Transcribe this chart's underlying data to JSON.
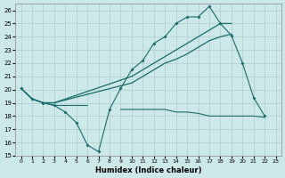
{
  "xlabel": "Humidex (Indice chaleur)",
  "background_color": "#cce8e8",
  "grid_color": "#b0cccc",
  "line_color": "#1a6b6b",
  "xlim": [
    -0.5,
    23.5
  ],
  "ylim": [
    15,
    26.5
  ],
  "yticks": [
    15,
    16,
    17,
    18,
    19,
    20,
    21,
    22,
    23,
    24,
    25,
    26
  ],
  "xticks": [
    0,
    1,
    2,
    3,
    4,
    5,
    6,
    7,
    8,
    9,
    10,
    11,
    12,
    13,
    14,
    15,
    16,
    17,
    18,
    19,
    20,
    21,
    22,
    23
  ],
  "series1_x": [
    0,
    1,
    2,
    3,
    4,
    5,
    6,
    7,
    8,
    9,
    10,
    11,
    12,
    13,
    14,
    15,
    16,
    17,
    18,
    19,
    20,
    21,
    22
  ],
  "series1_y": [
    20.1,
    19.3,
    19.0,
    18.8,
    18.3,
    17.5,
    15.8,
    15.3,
    18.5,
    20.1,
    21.5,
    22.2,
    23.5,
    24.0,
    25.0,
    25.5,
    25.5,
    26.3,
    25.0,
    24.1,
    22.0,
    19.4,
    18.0
  ],
  "series2_x": [
    0,
    1,
    2,
    3,
    10,
    11,
    12,
    13,
    14,
    15,
    16,
    17,
    18,
    19
  ],
  "series2_y": [
    20.1,
    19.3,
    19.0,
    19.0,
    21.0,
    21.5,
    22.0,
    22.5,
    23.0,
    23.5,
    24.0,
    24.5,
    25.0,
    25.0
  ],
  "series3_x": [
    0,
    1,
    2,
    3,
    10,
    11,
    12,
    13,
    14,
    15,
    16,
    17,
    18,
    19
  ],
  "series3_y": [
    20.1,
    19.3,
    19.0,
    19.0,
    20.5,
    21.0,
    21.5,
    22.0,
    22.3,
    22.7,
    23.2,
    23.7,
    24.0,
    24.2
  ],
  "series4_x": [
    2,
    3,
    4,
    5,
    6,
    7,
    8,
    9,
    10,
    11,
    12,
    13,
    14,
    15,
    16,
    17,
    18,
    19,
    20,
    21,
    22
  ],
  "series4_y": [
    19.0,
    18.8,
    18.8,
    18.8,
    18.8,
    null,
    null,
    18.5,
    18.5,
    18.5,
    18.5,
    18.5,
    18.3,
    18.3,
    18.2,
    18.0,
    18.0,
    18.0,
    18.0,
    18.0,
    17.9
  ]
}
